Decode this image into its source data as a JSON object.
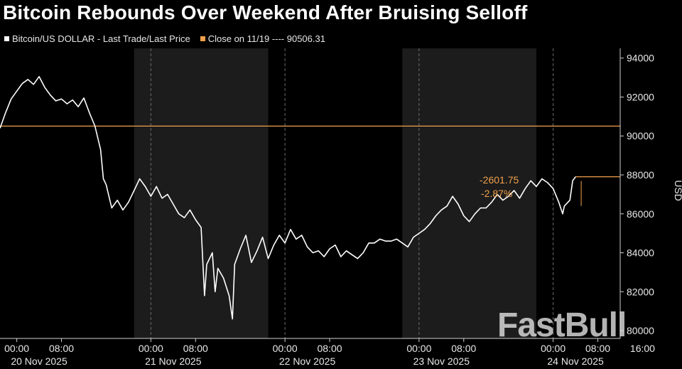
{
  "title": "Bitcoin Rebounds Over Weekend After Bruising Selloff",
  "watermark": "FastBull",
  "colors": {
    "background": "#000000",
    "line": "#ffffff",
    "reference": "#f0a04b",
    "shade": "#1c1c1c",
    "grid": "#6a6a6a",
    "axis": "#cfcfcf"
  },
  "chart_data": {
    "type": "line",
    "legend": [
      {
        "label": "Bitcoin/US DOLLAR - Last Trade/Last Price",
        "color": "#ffffff"
      },
      {
        "label": "Close on 11/19 ---- 90506.31",
        "color": "#f0a04b"
      }
    ],
    "ylabel": "USD",
    "ylim": [
      79600,
      94500
    ],
    "yticks": [
      80000,
      82000,
      84000,
      86000,
      88000,
      90000,
      92000,
      94000
    ],
    "ytick_labels": [
      "80000",
      "82000",
      "84000",
      "86000",
      "88000",
      "90000",
      "92000",
      "94000"
    ],
    "x_unit": "hours from 20 Nov 2025 00:00",
    "xlim": [
      -3,
      108
    ],
    "time_labels": [
      {
        "x": 0,
        "label": "00:00"
      },
      {
        "x": 8,
        "label": "08:00"
      },
      {
        "x": 24,
        "label": "00:00"
      },
      {
        "x": 32,
        "label": "08:00"
      },
      {
        "x": 48,
        "label": "00:00"
      },
      {
        "x": 56,
        "label": "08:00"
      },
      {
        "x": 72,
        "label": "00:00"
      },
      {
        "x": 80,
        "label": "08:00"
      },
      {
        "x": 96,
        "label": "00:00"
      },
      {
        "x": 104,
        "label": "08:00"
      },
      {
        "x": 112,
        "label": "16:00"
      }
    ],
    "date_labels": [
      {
        "x": 4,
        "label": "20 Nov 2025"
      },
      {
        "x": 28,
        "label": "21 Nov 2025"
      },
      {
        "x": 52,
        "label": "22 Nov 2025"
      },
      {
        "x": 76,
        "label": "23 Nov 2025"
      },
      {
        "x": 100,
        "label": "24 Nov 2025"
      }
    ],
    "shaded_regions": [
      [
        21,
        45
      ],
      [
        69,
        93
      ]
    ],
    "reference_line": {
      "value": 90506.31,
      "label": "Close on 11/19"
    },
    "last_value": 87904.56,
    "annotations": {
      "change": "-2601.75",
      "change_pct": "-2.87%"
    },
    "series": [
      {
        "values": [
          [
            -3,
            90400
          ],
          [
            -2,
            91200
          ],
          [
            -1,
            91900
          ],
          [
            0,
            92300
          ],
          [
            1,
            92700
          ],
          [
            2,
            92900
          ],
          [
            3,
            92650
          ],
          [
            4,
            93050
          ],
          [
            5,
            92500
          ],
          [
            6,
            92100
          ],
          [
            7,
            91800
          ],
          [
            8,
            91900
          ],
          [
            9,
            91650
          ],
          [
            10,
            91850
          ],
          [
            11,
            91500
          ],
          [
            12,
            91950
          ],
          [
            13,
            91200
          ],
          [
            14,
            90500
          ],
          [
            15,
            89300
          ],
          [
            15.5,
            87800
          ],
          [
            16,
            87500
          ],
          [
            17,
            86300
          ],
          [
            18,
            86700
          ],
          [
            19,
            86200
          ],
          [
            20,
            86600
          ],
          [
            21,
            87200
          ],
          [
            22,
            87800
          ],
          [
            23,
            87400
          ],
          [
            24,
            86900
          ],
          [
            25,
            87400
          ],
          [
            26,
            86800
          ],
          [
            27,
            87000
          ],
          [
            28,
            86500
          ],
          [
            29,
            86000
          ],
          [
            30,
            85800
          ],
          [
            31,
            86200
          ],
          [
            32,
            85700
          ],
          [
            33,
            85300
          ],
          [
            33.6,
            81800
          ],
          [
            34,
            83400
          ],
          [
            35,
            84000
          ],
          [
            35.5,
            82000
          ],
          [
            36,
            83200
          ],
          [
            37,
            82700
          ],
          [
            38,
            81800
          ],
          [
            38.6,
            80600
          ],
          [
            39,
            83400
          ],
          [
            40,
            84200
          ],
          [
            41,
            84900
          ],
          [
            42,
            83500
          ],
          [
            43,
            84100
          ],
          [
            44,
            84800
          ],
          [
            45,
            83700
          ],
          [
            46,
            84400
          ],
          [
            47,
            84900
          ],
          [
            48,
            84500
          ],
          [
            49,
            85200
          ],
          [
            50,
            84700
          ],
          [
            51,
            84900
          ],
          [
            52,
            84300
          ],
          [
            53,
            84000
          ],
          [
            54,
            84100
          ],
          [
            55,
            83800
          ],
          [
            56,
            84200
          ],
          [
            57,
            84400
          ],
          [
            58,
            83800
          ],
          [
            59,
            84100
          ],
          [
            60,
            83900
          ],
          [
            61,
            83700
          ],
          [
            62,
            84000
          ],
          [
            63,
            84500
          ],
          [
            64,
            84500
          ],
          [
            65,
            84700
          ],
          [
            66,
            84600
          ],
          [
            67,
            84600
          ],
          [
            68,
            84700
          ],
          [
            69,
            84500
          ],
          [
            70,
            84300
          ],
          [
            71,
            84800
          ],
          [
            72,
            85000
          ],
          [
            73,
            85200
          ],
          [
            74,
            85500
          ],
          [
            75,
            85900
          ],
          [
            76,
            86200
          ],
          [
            77,
            86400
          ],
          [
            78,
            86900
          ],
          [
            79,
            86500
          ],
          [
            80,
            85900
          ],
          [
            81,
            85600
          ],
          [
            82,
            86000
          ],
          [
            83,
            86300
          ],
          [
            84,
            86300
          ],
          [
            85,
            86600
          ],
          [
            86,
            87000
          ],
          [
            87,
            86700
          ],
          [
            88,
            86900
          ],
          [
            89,
            87200
          ],
          [
            90,
            86800
          ],
          [
            91,
            87300
          ],
          [
            92,
            87700
          ],
          [
            93,
            87400
          ],
          [
            94,
            87800
          ],
          [
            95,
            87600
          ],
          [
            96,
            87300
          ],
          [
            97,
            86600
          ],
          [
            97.7,
            86000
          ],
          [
            98,
            86400
          ],
          [
            99,
            86700
          ],
          [
            99.5,
            87700
          ],
          [
            100,
            87905
          ]
        ]
      }
    ]
  }
}
